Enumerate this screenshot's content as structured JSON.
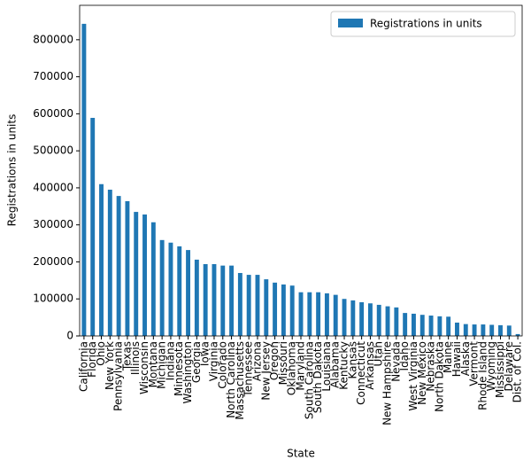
{
  "chart_data": {
    "type": "bar",
    "xlabel": "State",
    "ylabel": "Registrations in units",
    "categories": [
      "California",
      "Florida",
      "Ohio",
      "New York",
      "Pennsylvania",
      "Texas",
      "Illinois",
      "Wisconsin",
      "Montana",
      "Michigan",
      "Indiana",
      "Minnesota",
      "Washington",
      "Georgia",
      "Iowa",
      "Virginia",
      "Colorado",
      "North Carolina",
      "Massachusetts",
      "Tennessee",
      "Arizona",
      "New Jersey",
      "Oregon",
      "Missouri",
      "Oklahoma",
      "Maryland",
      "South Carolina",
      "South Dakota",
      "Louisiana",
      "Alabama",
      "Kentucky",
      "Kansas",
      "Connecticut",
      "Arkansas",
      "Utah",
      "New Hampshire",
      "Nevada",
      "Idaho",
      "West Virginia",
      "New Mexico",
      "Nebraska",
      "North Dakota",
      "Maine",
      "Hawaii",
      "Alaska",
      "Vermont",
      "Rhode Island",
      "Wyoming",
      "Mississippi",
      "Delaware",
      "Dist. of Col."
    ],
    "series": [
      {
        "name": "Registrations in units",
        "color": "#1f77b4",
        "values": [
          843000,
          589000,
          410000,
          395000,
          378000,
          364000,
          335000,
          328000,
          307000,
          259000,
          252000,
          242000,
          232000,
          206000,
          194000,
          194000,
          190000,
          190000,
          170000,
          165000,
          165000,
          153000,
          144000,
          139000,
          136000,
          118000,
          118000,
          118000,
          115000,
          111000,
          100000,
          96000,
          91000,
          88000,
          84000,
          80000,
          77000,
          62000,
          60000,
          57000,
          55000,
          53000,
          52000,
          36000,
          32000,
          31000,
          31000,
          30000,
          29000,
          28000,
          5000
        ]
      }
    ],
    "ylim": [
      0,
      893000
    ],
    "yticks": [
      0,
      100000,
      200000,
      300000,
      400000,
      500000,
      600000,
      700000,
      800000
    ],
    "legend": "upper right"
  }
}
